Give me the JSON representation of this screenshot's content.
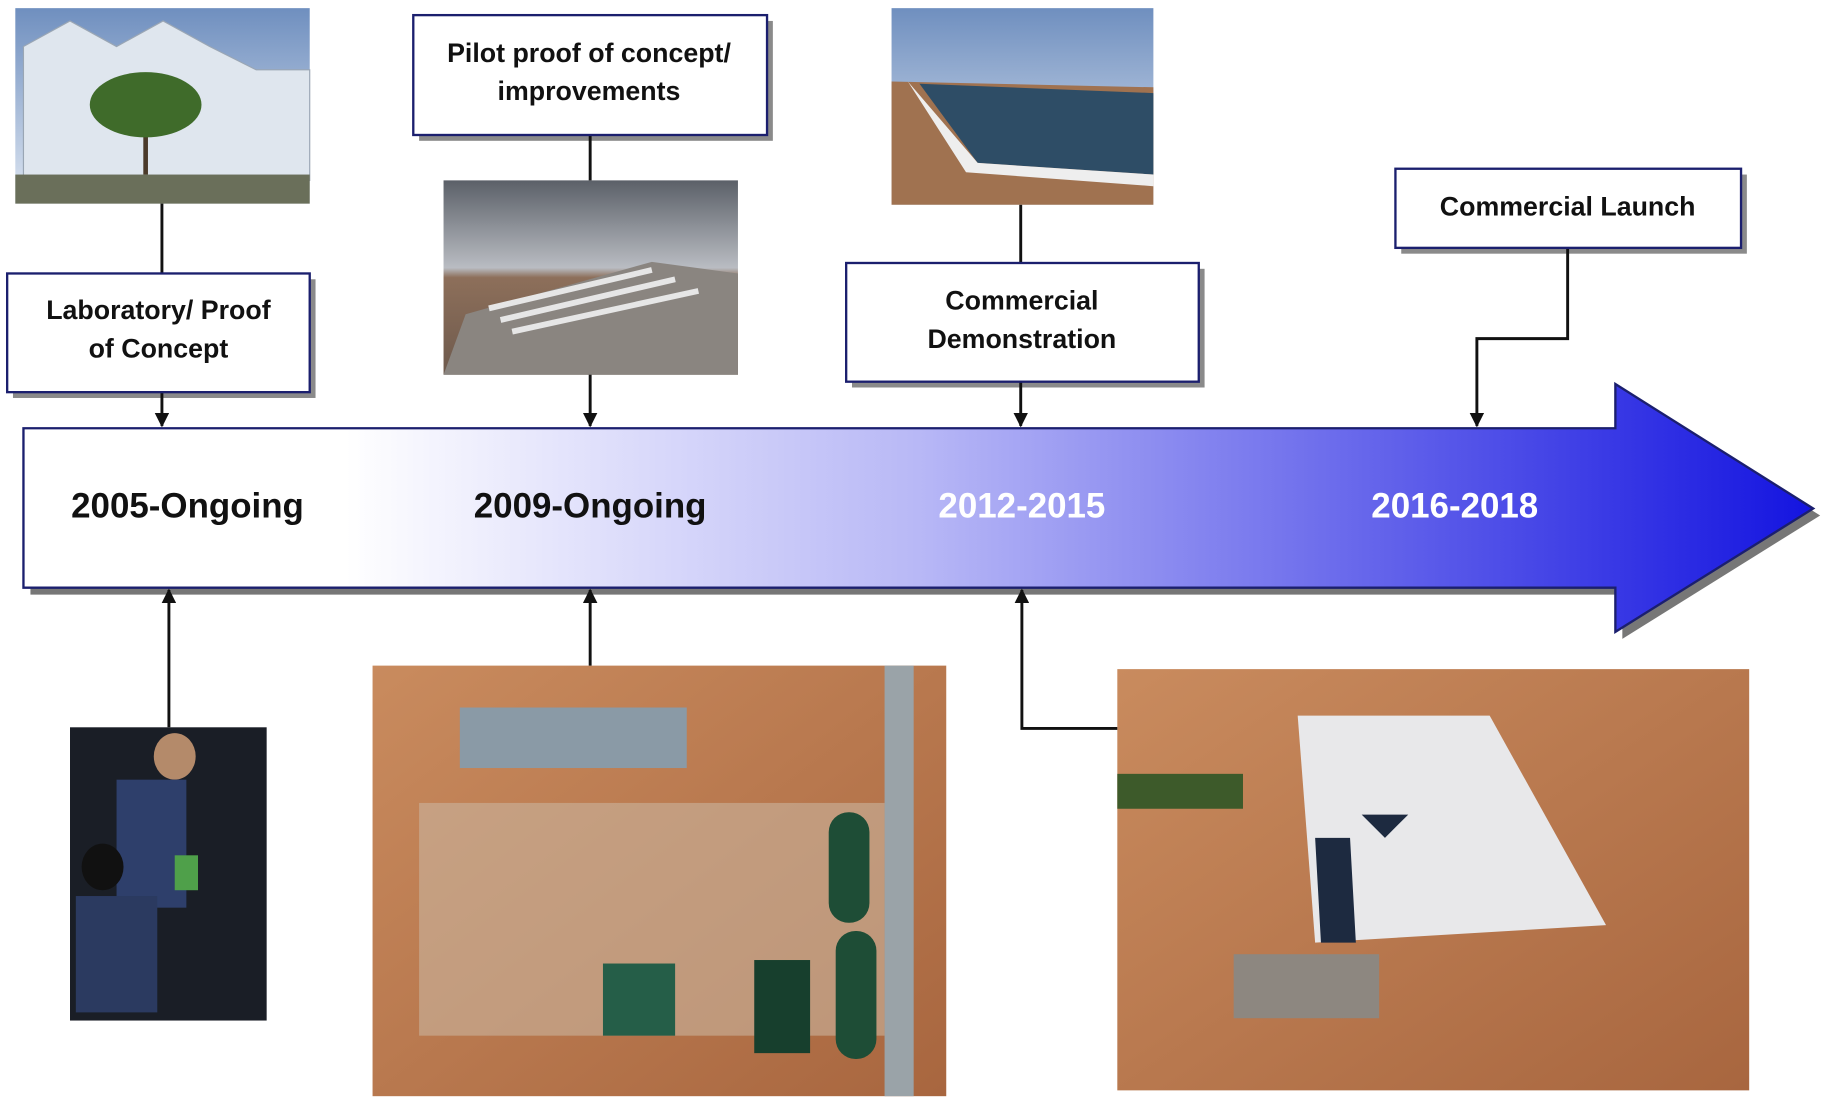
{
  "stages": [
    {
      "label_lines": [
        "Laboratory/ Proof",
        "of Concept"
      ],
      "period": "2005-Ongoing"
    },
    {
      "label_lines": [
        "Pilot proof of concept/",
        "improvements"
      ],
      "period": "2009-Ongoing"
    },
    {
      "label_lines": [
        "Commercial",
        "Demonstration"
      ],
      "period": "2012-2015"
    },
    {
      "label_lines": [
        "Commercial Launch"
      ],
      "period": "2016-2018"
    }
  ]
}
